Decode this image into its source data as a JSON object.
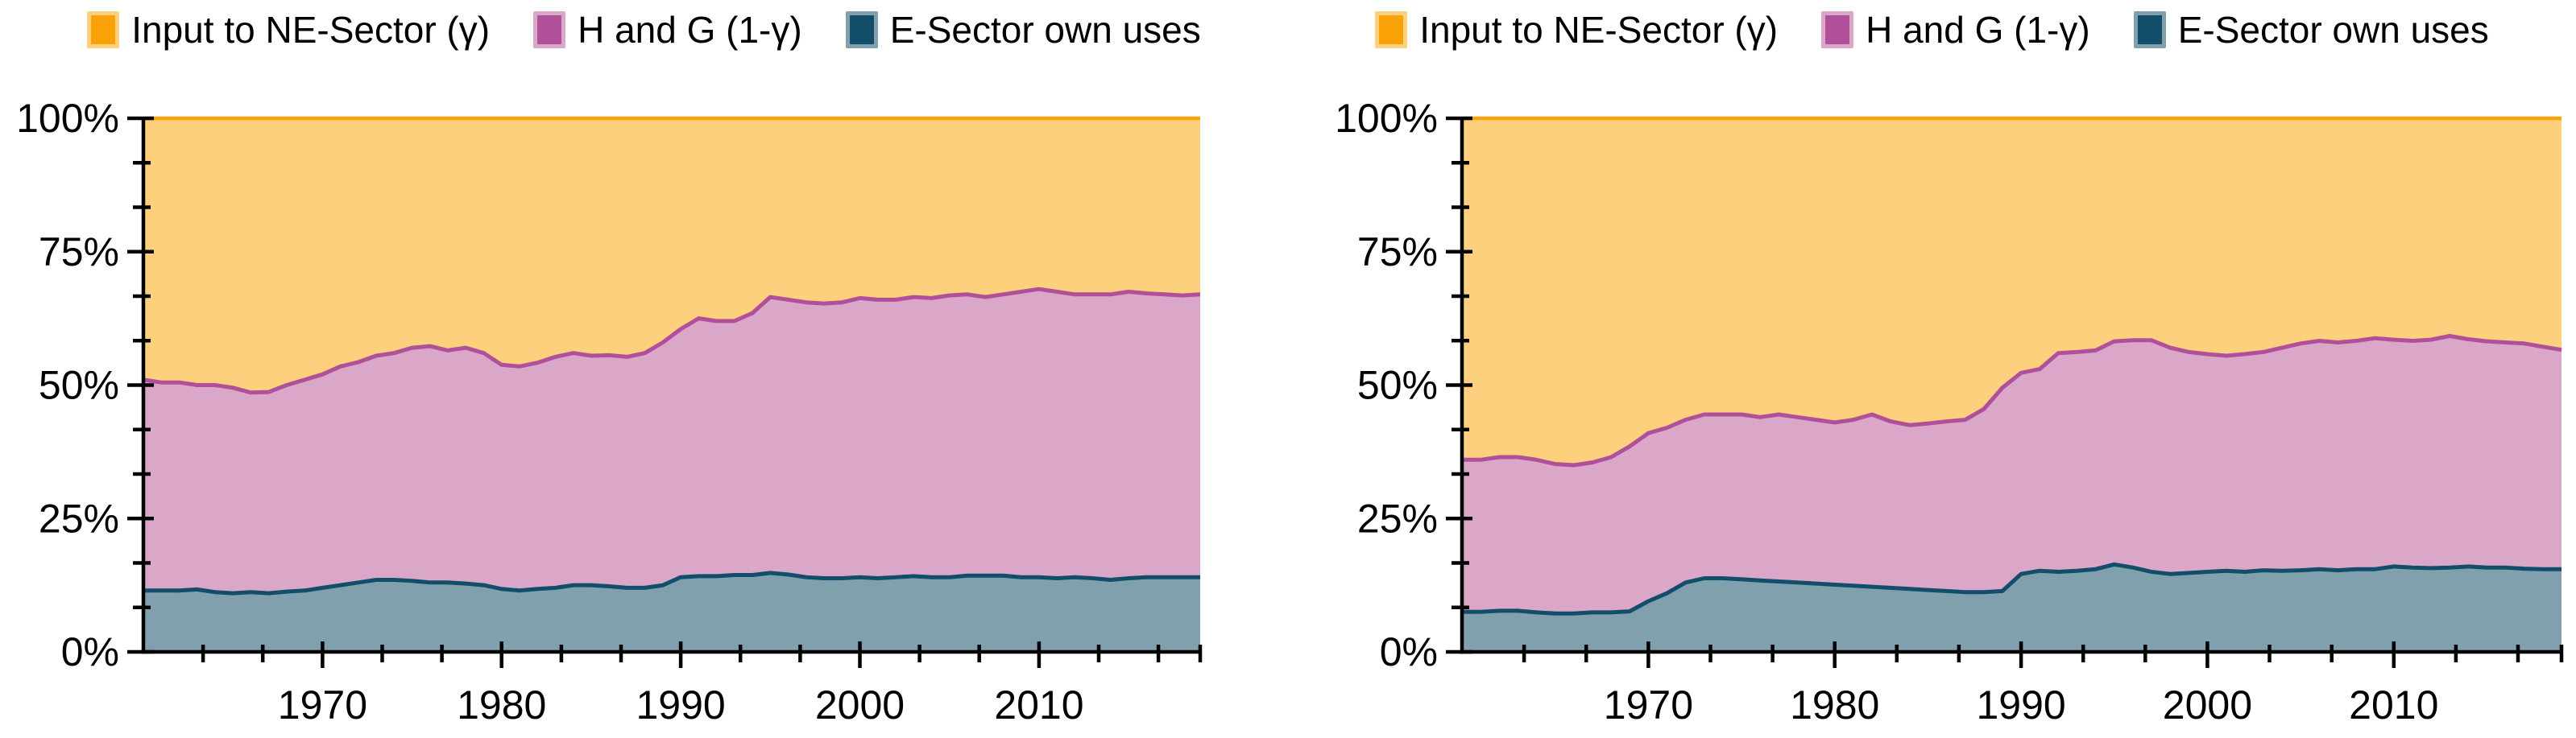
{
  "page": {
    "background": "#ffffff"
  },
  "legend": {
    "items": [
      {
        "label": "Input to NE-Sector (γ)",
        "line_color": "#F9A208",
        "fill_color": "#FCD07C"
      },
      {
        "label": "H and G (1-γ)",
        "line_color": "#B0509B",
        "fill_color": "#DBA7C8"
      },
      {
        "label": "E-Sector own uses",
        "line_color": "#124D6A",
        "fill_color": "#7FA0AC"
      }
    ]
  },
  "chart_data": [
    {
      "type": "area",
      "stacked": true,
      "title": "",
      "xlabel": "",
      "ylabel": "",
      "xlim": [
        1960,
        2019
      ],
      "ylim": [
        0,
        100
      ],
      "grid": false,
      "legend_position": "top",
      "years": [
        1960,
        1961,
        1962,
        1963,
        1964,
        1965,
        1966,
        1967,
        1968,
        1969,
        1970,
        1971,
        1972,
        1973,
        1974,
        1975,
        1976,
        1977,
        1978,
        1979,
        1980,
        1981,
        1982,
        1983,
        1984,
        1985,
        1986,
        1987,
        1988,
        1989,
        1990,
        1991,
        1992,
        1993,
        1994,
        1995,
        1996,
        1997,
        1998,
        1999,
        2000,
        2001,
        2002,
        2003,
        2004,
        2005,
        2006,
        2007,
        2008,
        2009,
        2010,
        2011,
        2012,
        2013,
        2014,
        2015,
        2016,
        2017,
        2018,
        2019
      ],
      "x_ticks": [
        {
          "value": 1970,
          "label": "1970"
        },
        {
          "value": 1980,
          "label": "1980"
        },
        {
          "value": 1990,
          "label": "1990"
        },
        {
          "value": 2000,
          "label": "2000"
        },
        {
          "value": 2010,
          "label": "2010"
        }
      ],
      "y_ticks": [
        {
          "value": 0,
          "label": "0%"
        },
        {
          "value": 25,
          "label": "25%"
        },
        {
          "value": 50,
          "label": "50%"
        },
        {
          "value": 75,
          "label": "75%"
        },
        {
          "value": 100,
          "label": "100%"
        }
      ],
      "minor_x_step_years": 3.3333,
      "minor_y_step_pct": 8.3333,
      "series": [
        {
          "id": "e-sector-own-uses",
          "name": "E-Sector own uses",
          "unit": "%",
          "fill": "#7FA0AC",
          "line": "#124D6A",
          "values": [
            11.5,
            11.5,
            11.5,
            11.7,
            11.2,
            11,
            11.2,
            11,
            11.3,
            11.5,
            12,
            12.5,
            13,
            13.5,
            13.5,
            13.3,
            13,
            13,
            12.8,
            12.5,
            11.8,
            11.5,
            11.8,
            12,
            12.5,
            12.5,
            12.3,
            12,
            12,
            12.5,
            14,
            14.2,
            14.2,
            14.4,
            14.4,
            14.8,
            14.5,
            14,
            13.8,
            13.8,
            14,
            13.8,
            14,
            14.2,
            14,
            14,
            14.3,
            14.3,
            14.3,
            14,
            14,
            13.8,
            14,
            13.8,
            13.5,
            13.8,
            14,
            14,
            14,
            14
          ]
        },
        {
          "id": "h-and-g",
          "name": "H and G (1-γ)",
          "unit": "%",
          "fill": "#DBA7C8",
          "line": "#B0509B",
          "values": [
            39.5,
            39,
            39,
            38.3,
            38.8,
            38.5,
            37.4,
            37.7,
            38.7,
            39.5,
            40,
            41,
            41.3,
            42,
            42.5,
            43.7,
            44.3,
            43.5,
            44.2,
            43.5,
            42,
            42,
            42.4,
            43.3,
            43.5,
            43,
            43.3,
            43.3,
            44,
            45.5,
            46.5,
            48.3,
            47.8,
            47.6,
            49.1,
            51.7,
            51.5,
            51.5,
            51.5,
            51.7,
            52.3,
            52.2,
            52,
            52.3,
            52.3,
            52.8,
            52.7,
            52.2,
            52.7,
            53.5,
            54,
            53.7,
            53,
            53.2,
            53.5,
            53.7,
            53.2,
            53,
            52.8,
            53
          ]
        },
        {
          "id": "input-to-ne-sector",
          "name": "Input to NE-Sector (γ)",
          "unit": "%",
          "fill": "#FCD07C",
          "line": "#F9A208",
          "values": [
            49,
            49.5,
            49.5,
            50,
            50,
            50.5,
            51.4,
            51.3,
            50,
            49,
            48,
            46.5,
            45.7,
            44.5,
            44,
            43,
            42.7,
            43.5,
            43,
            44,
            46.2,
            46.5,
            45.8,
            44.7,
            44,
            44.5,
            44.4,
            44.7,
            44,
            42,
            39.5,
            37.5,
            38,
            38,
            36.5,
            33.5,
            34,
            34.5,
            34.7,
            34.5,
            33.7,
            34,
            34,
            33.5,
            33.7,
            33.2,
            33,
            33.5,
            33,
            32.5,
            32,
            32.5,
            33,
            33,
            33,
            32.5,
            32.8,
            33,
            33.2,
            33
          ]
        }
      ]
    },
    {
      "type": "area",
      "stacked": true,
      "title": "",
      "xlabel": "",
      "ylabel": "",
      "xlim": [
        1960,
        2019
      ],
      "ylim": [
        0,
        100
      ],
      "grid": false,
      "legend_position": "top",
      "years": [
        1960,
        1961,
        1962,
        1963,
        1964,
        1965,
        1966,
        1967,
        1968,
        1969,
        1970,
        1971,
        1972,
        1973,
        1974,
        1975,
        1976,
        1977,
        1978,
        1979,
        1980,
        1981,
        1982,
        1983,
        1984,
        1985,
        1986,
        1987,
        1988,
        1989,
        1990,
        1991,
        1992,
        1993,
        1994,
        1995,
        1996,
        1997,
        1998,
        1999,
        2000,
        2001,
        2002,
        2003,
        2004,
        2005,
        2006,
        2007,
        2008,
        2009,
        2010,
        2011,
        2012,
        2013,
        2014,
        2015,
        2016,
        2017,
        2018,
        2019
      ],
      "x_ticks": [
        {
          "value": 1970,
          "label": "1970"
        },
        {
          "value": 1980,
          "label": "1980"
        },
        {
          "value": 1990,
          "label": "1990"
        },
        {
          "value": 2000,
          "label": "2000"
        },
        {
          "value": 2010,
          "label": "2010"
        }
      ],
      "y_ticks": [
        {
          "value": 0,
          "label": "0%"
        },
        {
          "value": 25,
          "label": "25%"
        },
        {
          "value": 50,
          "label": "50%"
        },
        {
          "value": 75,
          "label": "75%"
        },
        {
          "value": 100,
          "label": "100%"
        }
      ],
      "minor_x_step_years": 3.3333,
      "minor_y_step_pct": 8.3333,
      "series": [
        {
          "id": "e-sector-own-uses",
          "name": "E-Sector own uses",
          "unit": "%",
          "fill": "#7FA0AC",
          "line": "#124D6A",
          "values": [
            7.5,
            7.5,
            7.7,
            7.7,
            7.4,
            7.2,
            7.2,
            7.4,
            7.4,
            7.6,
            9.5,
            11,
            13,
            13.8,
            13.8,
            13.6,
            13.4,
            13.2,
            13,
            12.8,
            12.6,
            12.4,
            12.2,
            12,
            11.8,
            11.6,
            11.4,
            11.2,
            11.2,
            11.4,
            14.6,
            15.2,
            15,
            15.2,
            15.5,
            16.4,
            15.8,
            15,
            14.6,
            14.8,
            15,
            15.2,
            15,
            15.3,
            15.2,
            15.3,
            15.5,
            15.3,
            15.5,
            15.5,
            16,
            15.8,
            15.7,
            15.8,
            16,
            15.8,
            15.8,
            15.6,
            15.5,
            15.5
          ]
        },
        {
          "id": "h-and-g",
          "name": "H and G (1-γ)",
          "unit": "%",
          "fill": "#DBA7C8",
          "line": "#B0509B",
          "values": [
            28.5,
            28.5,
            28.8,
            28.8,
            28.6,
            28,
            27.8,
            28.1,
            29.1,
            30.9,
            31.5,
            31,
            30.5,
            30.7,
            30.7,
            30.9,
            30.6,
            31.3,
            31,
            30.7,
            30.4,
            31.1,
            32.3,
            31.2,
            30.7,
            31.2,
            31.8,
            32.3,
            34.3,
            38.1,
            37.7,
            37.8,
            41,
            41,
            41,
            41.8,
            42.6,
            43.4,
            42.4,
            41.4,
            40.8,
            40.3,
            40.8,
            40.9,
            41.8,
            42.5,
            42.8,
            42.7,
            42.8,
            43.3,
            42.5,
            42.5,
            42.8,
            43.4,
            42.6,
            42.4,
            42.2,
            42.2,
            41.7,
            41.1
          ]
        },
        {
          "id": "input-to-ne-sector",
          "name": "Input to NE-Sector (γ)",
          "unit": "%",
          "fill": "#FCD07C",
          "line": "#F9A208",
          "values": [
            64,
            64,
            63.5,
            63.5,
            64,
            64.8,
            65,
            64.5,
            63.5,
            61.5,
            59,
            58,
            56.5,
            55.5,
            55.5,
            55.5,
            56,
            55.5,
            56,
            56.5,
            57,
            56.5,
            55.5,
            56.8,
            57.5,
            57.2,
            56.8,
            56.5,
            54.5,
            50.5,
            47.7,
            47,
            44,
            43.8,
            43.5,
            41.8,
            41.6,
            41.6,
            43,
            43.8,
            44.2,
            44.5,
            44.2,
            43.8,
            43,
            42.2,
            41.7,
            42,
            41.7,
            41.2,
            41.5,
            41.7,
            41.5,
            40.8,
            41.4,
            41.8,
            42,
            42.2,
            42.8,
            43.4
          ]
        }
      ]
    }
  ]
}
